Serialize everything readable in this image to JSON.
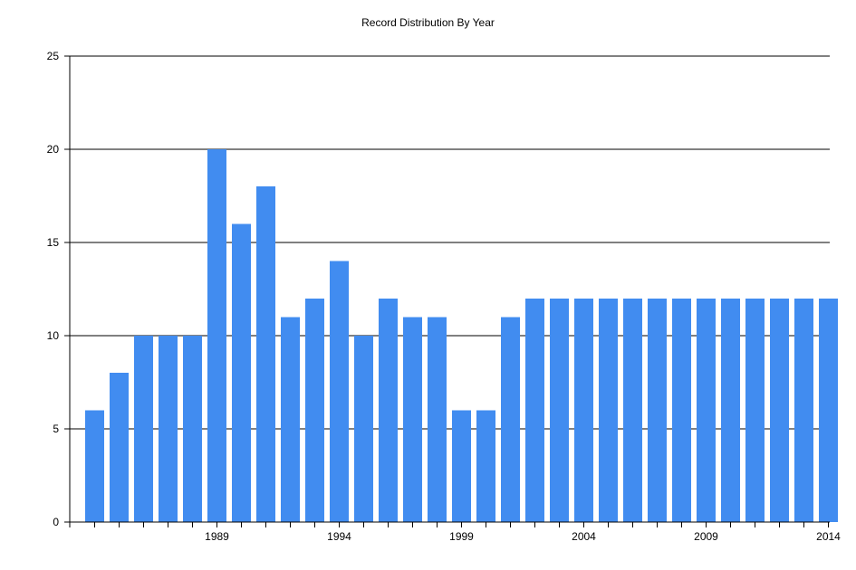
{
  "chart_data": {
    "type": "bar",
    "title": "Record Distribution By Year",
    "xlabel": "",
    "ylabel": "",
    "categories": [
      1984,
      1985,
      1986,
      1987,
      1988,
      1989,
      1990,
      1991,
      1992,
      1993,
      1994,
      1995,
      1996,
      1997,
      1998,
      1999,
      2000,
      2001,
      2002,
      2003,
      2004,
      2005,
      2006,
      2007,
      2008,
      2009,
      2010,
      2011,
      2012,
      2013,
      2014
    ],
    "values": [
      6,
      8,
      10,
      10,
      10,
      20,
      16,
      18,
      11,
      12,
      14,
      10,
      12,
      11,
      11,
      6,
      6,
      11,
      12,
      12,
      12,
      12,
      12,
      12,
      12,
      12,
      12,
      12,
      12,
      12,
      12
    ],
    "x_tick_labels": [
      "1989",
      "1994",
      "1999",
      "2004",
      "2009",
      "2014"
    ],
    "y_tick_labels": [
      "0",
      "5",
      "10",
      "15",
      "20",
      "25"
    ],
    "ylim": [
      0,
      25
    ],
    "grid": true,
    "legend": "none",
    "bar_color": "#418CF0"
  }
}
